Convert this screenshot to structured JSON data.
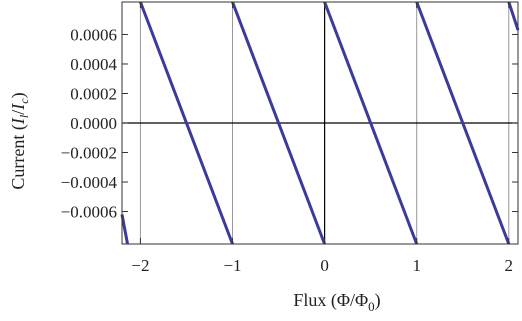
{
  "chart_data": {
    "type": "line",
    "title": "",
    "xlabel": "Flux (Φ/Φ",
    "xlabel_sub": "0",
    "xlabel_tail": ")",
    "ylabel_prefix": "Current (",
    "ylabel_I1": "I",
    "ylabel_I1_sub": "l",
    "ylabel_slash": "/",
    "ylabel_I2": "I",
    "ylabel_I2_sub": "c",
    "ylabel_tail": ")",
    "xlim": [
      -2.2,
      2.1
    ],
    "ylim": [
      -0.00082,
      0.00082
    ],
    "x_ticks": [
      -2,
      -1,
      0,
      1,
      2
    ],
    "x_tick_labels": [
      "−2",
      "−1",
      "0",
      "1",
      "2"
    ],
    "y_ticks": [
      0.0006,
      0.0004,
      0.0002,
      0.0,
      -0.0002,
      -0.0004,
      -0.0006
    ],
    "y_tick_labels": [
      "0.0006",
      "0.0004",
      "0.0002",
      "0.0000",
      "−0.0002",
      "−0.0004",
      "−0.0006"
    ],
    "vertical_gridlines_x": [
      -2,
      -1,
      1,
      2
    ],
    "grid": true,
    "legend": "none",
    "series_color": "#3b3b9a",
    "segments": [
      {
        "x": [
          -2.2,
          -2.14
        ],
        "y": [
          -0.00062,
          -0.00082
        ]
      },
      {
        "x": [
          -2.0,
          -1.0
        ],
        "y": [
          0.00082,
          -0.00082
        ]
      },
      {
        "x": [
          -1.0,
          0.0
        ],
        "y": [
          0.00082,
          -0.00082
        ]
      },
      {
        "x": [
          0.0,
          1.0
        ],
        "y": [
          0.00082,
          -0.00082
        ]
      },
      {
        "x": [
          1.0,
          2.0
        ],
        "y": [
          0.00082,
          -0.00082
        ]
      },
      {
        "x": [
          2.0,
          2.1
        ],
        "y": [
          0.00082,
          0.00063
        ]
      }
    ]
  }
}
